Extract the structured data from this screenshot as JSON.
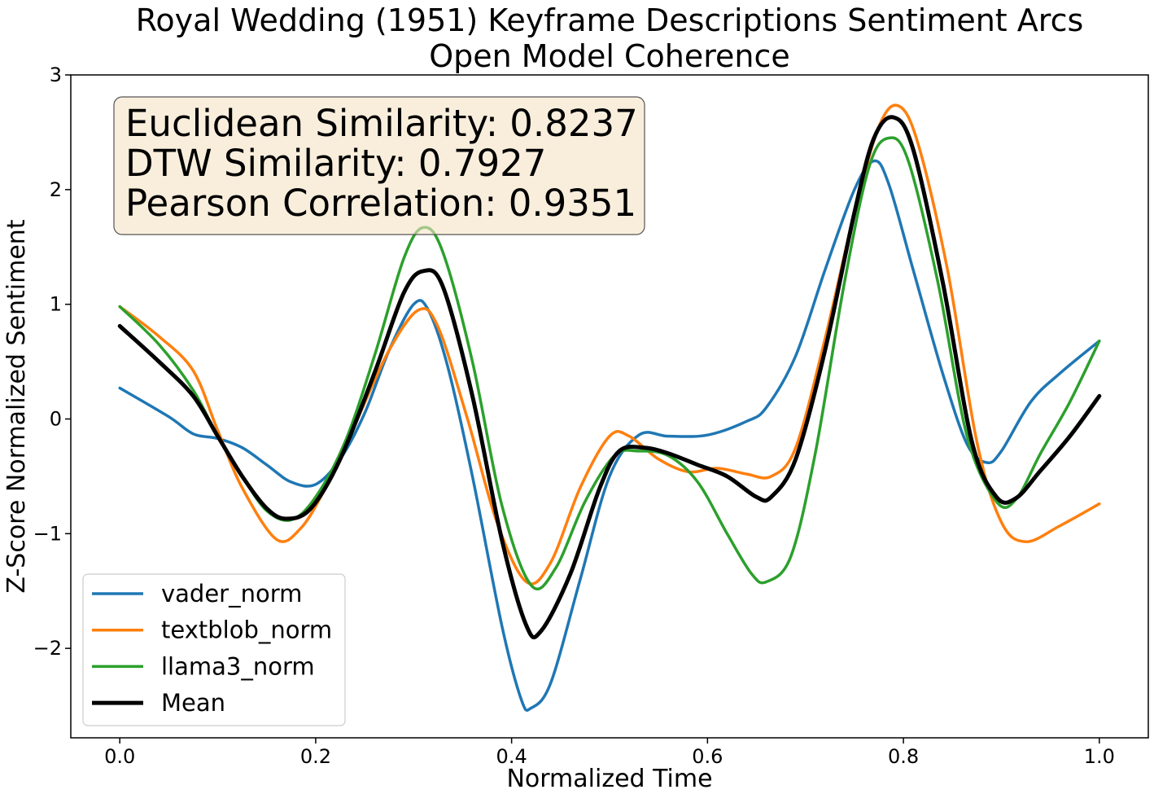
{
  "chart_data": {
    "type": "line",
    "title": "Royal Wedding (1951) Keyframe Descriptions Sentiment Arcs",
    "subtitle": "Open Model Coherence",
    "xlabel": "Normalized Time",
    "ylabel": "Z-Score Normalized Sentiment",
    "xlim": [
      -0.05,
      1.05
    ],
    "ylim": [
      -2.78,
      3.0
    ],
    "xticks": [
      0.0,
      0.2,
      0.4,
      0.6,
      0.8,
      1.0
    ],
    "xtick_labels": [
      "0.0",
      "0.2",
      "0.4",
      "0.6",
      "0.8",
      "1.0"
    ],
    "yticks": [
      -2,
      -1,
      0,
      1,
      2,
      3
    ],
    "ytick_labels": [
      "−2",
      "−1",
      "0",
      "1",
      "2",
      "3"
    ],
    "grid": false,
    "legend_position": "lower-left",
    "stats": {
      "euclidean": "Euclidean Similarity: 0.8237",
      "dtw": "DTW Similarity: 0.7927",
      "pearson": "Pearson Correlation: 0.9351"
    },
    "series": [
      {
        "name": "vader_norm",
        "color": "#1f77b4",
        "points": [
          [
            0.0,
            0.27
          ],
          [
            0.05,
            0.02
          ],
          [
            0.075,
            -0.13
          ],
          [
            0.1,
            -0.17
          ],
          [
            0.125,
            -0.25
          ],
          [
            0.15,
            -0.4
          ],
          [
            0.175,
            -0.55
          ],
          [
            0.2,
            -0.57
          ],
          [
            0.225,
            -0.35
          ],
          [
            0.25,
            0.05
          ],
          [
            0.275,
            0.6
          ],
          [
            0.3,
            1.0
          ],
          [
            0.315,
            0.95
          ],
          [
            0.335,
            0.45
          ],
          [
            0.36,
            -0.5
          ],
          [
            0.39,
            -1.8
          ],
          [
            0.41,
            -2.45
          ],
          [
            0.42,
            -2.52
          ],
          [
            0.44,
            -2.3
          ],
          [
            0.47,
            -1.4
          ],
          [
            0.5,
            -0.5
          ],
          [
            0.53,
            -0.14
          ],
          [
            0.56,
            -0.15
          ],
          [
            0.6,
            -0.14
          ],
          [
            0.64,
            -0.02
          ],
          [
            0.66,
            0.1
          ],
          [
            0.69,
            0.55
          ],
          [
            0.72,
            1.3
          ],
          [
            0.75,
            2.0
          ],
          [
            0.77,
            2.25
          ],
          [
            0.785,
            2.05
          ],
          [
            0.81,
            1.3
          ],
          [
            0.84,
            0.4
          ],
          [
            0.865,
            -0.22
          ],
          [
            0.885,
            -0.38
          ],
          [
            0.9,
            -0.28
          ],
          [
            0.93,
            0.15
          ],
          [
            0.96,
            0.4
          ],
          [
            1.0,
            0.68
          ]
        ]
      },
      {
        "name": "textblob_norm",
        "color": "#ff7f0e",
        "points": [
          [
            0.0,
            0.98
          ],
          [
            0.04,
            0.72
          ],
          [
            0.075,
            0.42
          ],
          [
            0.1,
            -0.1
          ],
          [
            0.125,
            -0.6
          ],
          [
            0.16,
            -1.05
          ],
          [
            0.185,
            -0.95
          ],
          [
            0.21,
            -0.6
          ],
          [
            0.24,
            -0.05
          ],
          [
            0.275,
            0.6
          ],
          [
            0.305,
            0.95
          ],
          [
            0.325,
            0.8
          ],
          [
            0.355,
            0.0
          ],
          [
            0.385,
            -0.9
          ],
          [
            0.415,
            -1.42
          ],
          [
            0.44,
            -1.25
          ],
          [
            0.47,
            -0.6
          ],
          [
            0.5,
            -0.15
          ],
          [
            0.52,
            -0.15
          ],
          [
            0.55,
            -0.35
          ],
          [
            0.58,
            -0.46
          ],
          [
            0.61,
            -0.43
          ],
          [
            0.64,
            -0.48
          ],
          [
            0.665,
            -0.5
          ],
          [
            0.69,
            -0.25
          ],
          [
            0.72,
            0.7
          ],
          [
            0.75,
            1.8
          ],
          [
            0.775,
            2.55
          ],
          [
            0.795,
            2.73
          ],
          [
            0.815,
            2.4
          ],
          [
            0.845,
            1.3
          ],
          [
            0.875,
            -0.2
          ],
          [
            0.9,
            -0.9
          ],
          [
            0.925,
            -1.07
          ],
          [
            0.96,
            -0.93
          ],
          [
            1.0,
            -0.74
          ]
        ]
      },
      {
        "name": "llama3_norm",
        "color": "#2ca02c",
        "points": [
          [
            0.0,
            0.98
          ],
          [
            0.04,
            0.65
          ],
          [
            0.075,
            0.25
          ],
          [
            0.1,
            -0.15
          ],
          [
            0.125,
            -0.5
          ],
          [
            0.15,
            -0.8
          ],
          [
            0.175,
            -0.88
          ],
          [
            0.2,
            -0.68
          ],
          [
            0.23,
            -0.2
          ],
          [
            0.26,
            0.55
          ],
          [
            0.29,
            1.4
          ],
          [
            0.31,
            1.67
          ],
          [
            0.33,
            1.45
          ],
          [
            0.36,
            0.5
          ],
          [
            0.39,
            -0.75
          ],
          [
            0.42,
            -1.45
          ],
          [
            0.445,
            -1.3
          ],
          [
            0.475,
            -0.72
          ],
          [
            0.505,
            -0.32
          ],
          [
            0.53,
            -0.28
          ],
          [
            0.56,
            -0.32
          ],
          [
            0.59,
            -0.55
          ],
          [
            0.62,
            -1.0
          ],
          [
            0.645,
            -1.35
          ],
          [
            0.66,
            -1.42
          ],
          [
            0.685,
            -1.2
          ],
          [
            0.71,
            -0.3
          ],
          [
            0.74,
            1.2
          ],
          [
            0.765,
            2.2
          ],
          [
            0.785,
            2.45
          ],
          [
            0.805,
            2.25
          ],
          [
            0.835,
            1.2
          ],
          [
            0.865,
            -0.15
          ],
          [
            0.895,
            -0.72
          ],
          [
            0.915,
            -0.7
          ],
          [
            0.94,
            -0.3
          ],
          [
            0.97,
            0.15
          ],
          [
            1.0,
            0.68
          ]
        ]
      },
      {
        "name": "Mean",
        "color": "#000000",
        "points": [
          [
            0.0,
            0.81
          ],
          [
            0.04,
            0.5
          ],
          [
            0.075,
            0.2
          ],
          [
            0.1,
            -0.15
          ],
          [
            0.125,
            -0.5
          ],
          [
            0.15,
            -0.78
          ],
          [
            0.17,
            -0.87
          ],
          [
            0.195,
            -0.78
          ],
          [
            0.225,
            -0.35
          ],
          [
            0.26,
            0.4
          ],
          [
            0.29,
            1.1
          ],
          [
            0.31,
            1.29
          ],
          [
            0.33,
            1.15
          ],
          [
            0.36,
            0.2
          ],
          [
            0.39,
            -1.05
          ],
          [
            0.415,
            -1.8
          ],
          [
            0.43,
            -1.85
          ],
          [
            0.46,
            -1.35
          ],
          [
            0.49,
            -0.6
          ],
          [
            0.51,
            -0.28
          ],
          [
            0.535,
            -0.25
          ],
          [
            0.56,
            -0.3
          ],
          [
            0.59,
            -0.4
          ],
          [
            0.62,
            -0.5
          ],
          [
            0.65,
            -0.68
          ],
          [
            0.665,
            -0.68
          ],
          [
            0.69,
            -0.35
          ],
          [
            0.72,
            0.6
          ],
          [
            0.75,
            1.8
          ],
          [
            0.77,
            2.45
          ],
          [
            0.79,
            2.63
          ],
          [
            0.81,
            2.35
          ],
          [
            0.84,
            1.2
          ],
          [
            0.87,
            -0.2
          ],
          [
            0.895,
            -0.68
          ],
          [
            0.915,
            -0.69
          ],
          [
            0.94,
            -0.45
          ],
          [
            0.97,
            -0.15
          ],
          [
            1.0,
            0.2
          ]
        ]
      }
    ]
  }
}
